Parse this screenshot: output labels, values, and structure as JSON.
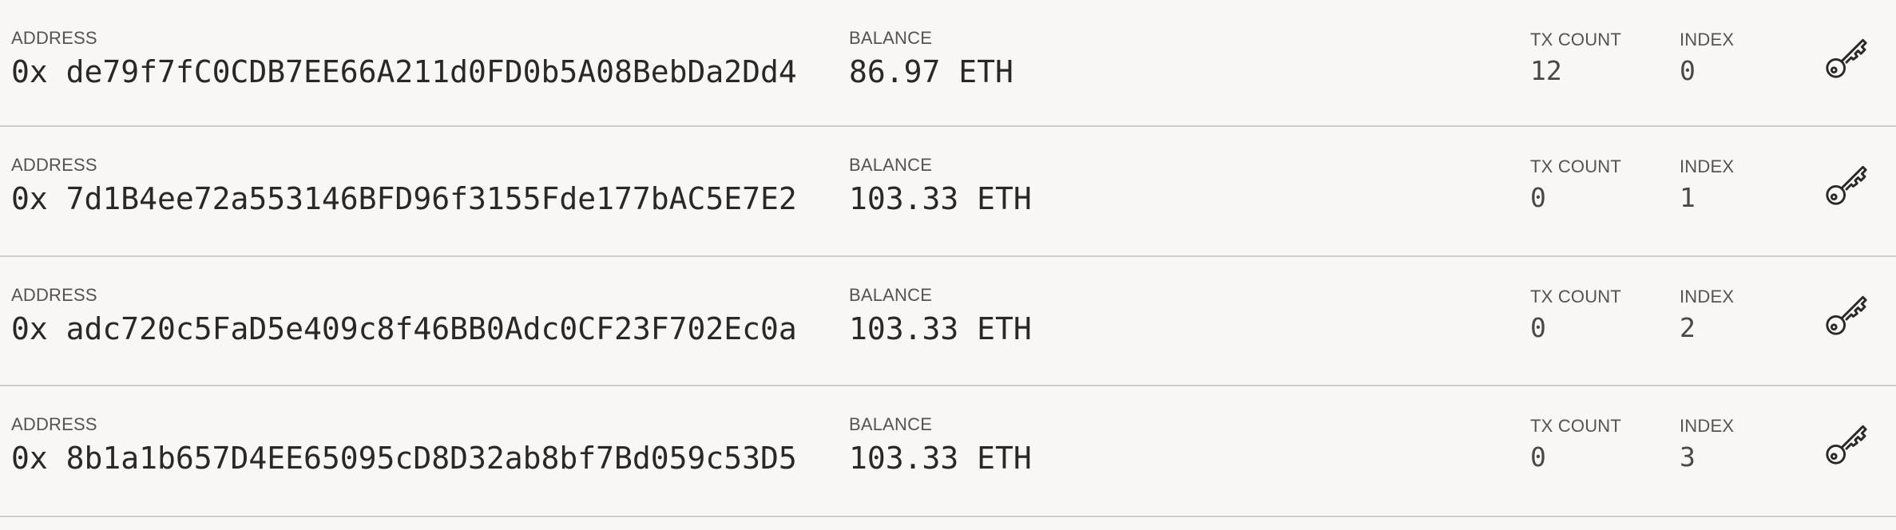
{
  "labels": {
    "address": "ADDRESS",
    "balance": "BALANCE",
    "tx_count": "TX COUNT",
    "index": "INDEX"
  },
  "icons": {
    "key": "key-icon"
  },
  "accounts": [
    {
      "address": "0x de79f7fC0CDB7EE66A211d0FD0b5A08BebDa2Dd4",
      "balance": "86.97 ETH",
      "tx_count": "12",
      "index": "0"
    },
    {
      "address": "0x 7d1B4ee72a553146BFD96f3155Fde177bAC5E7E2",
      "balance": "103.33 ETH",
      "tx_count": "0",
      "index": "1"
    },
    {
      "address": "0x adc720c5FaD5e409c8f46BB0Adc0CF23F702Ec0a",
      "balance": "103.33 ETH",
      "tx_count": "0",
      "index": "2"
    },
    {
      "address": "0x 8b1a1b657D4EE65095cD8D32ab8bf7Bd059c53D5",
      "balance": "103.33 ETH",
      "tx_count": "0",
      "index": "3"
    }
  ]
}
